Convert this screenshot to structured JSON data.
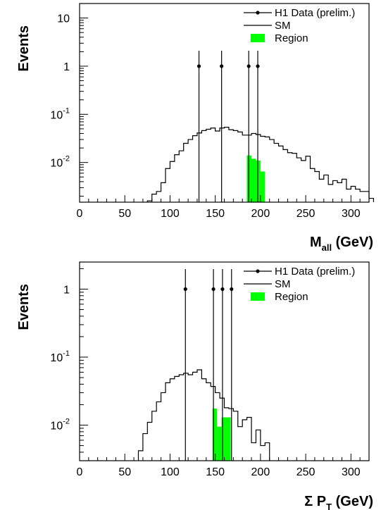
{
  "chart_data": [
    {
      "type": "histogram",
      "log_y": true,
      "xlim": [
        0,
        320
      ],
      "ylim": [
        0.0015,
        20
      ],
      "x_ticks": [
        0,
        50,
        100,
        150,
        200,
        250,
        300
      ],
      "x_tick_labels": [
        "0",
        "50",
        "100",
        "150",
        "200",
        "250",
        "300"
      ],
      "y_tick_values": [
        0.01,
        0.1,
        1,
        10
      ],
      "y_tick_labels": [
        {
          "base": "10",
          "exp": "-2"
        },
        {
          "base": "10",
          "exp": "-1"
        },
        {
          "base": "1",
          "exp": ""
        },
        {
          "base": "10",
          "exp": ""
        }
      ],
      "xlabel": {
        "main": "M",
        "sub": "all",
        "rest": " (GeV)"
      },
      "ylabel": "Events",
      "legend": [
        "H1 Data (prelim.)",
        "SM",
        "Region"
      ],
      "legend_position": "top-right",
      "region_color": "#00ff00",
      "bin_width": 5,
      "sm_hist": {
        "x_start": 75,
        "values": [
          0.0016,
          0.0022,
          0.0025,
          0.0038,
          0.0075,
          0.0105,
          0.0145,
          0.0175,
          0.025,
          0.03,
          0.036,
          0.041,
          0.046,
          0.049,
          0.052,
          0.045,
          0.052,
          0.054,
          0.048,
          0.046,
          0.043,
          0.037,
          0.037,
          0.04,
          0.038,
          0.035,
          0.034,
          0.03,
          0.025,
          0.022,
          0.0185,
          0.016,
          0.0155,
          0.0125,
          0.011,
          0.0135,
          0.0075,
          0.0065,
          0.0045,
          0.0055,
          0.0035,
          0.0042,
          0.0038,
          0.0045,
          0.0028,
          0.0032,
          0.0028,
          0.0025,
          0.0025,
          0.0018
        ]
      },
      "region": {
        "x_start": 185,
        "values": [
          0.014,
          0.012,
          0.011,
          0.0065
        ]
      },
      "data_points": [
        {
          "x": 132,
          "y": 1
        },
        {
          "x": 157,
          "y": 1
        },
        {
          "x": 187,
          "y": 1
        },
        {
          "x": 197,
          "y": 1
        }
      ]
    },
    {
      "type": "histogram",
      "log_y": true,
      "xlim": [
        0,
        320
      ],
      "ylim": [
        0.003,
        2.5
      ],
      "x_ticks": [
        0,
        50,
        100,
        150,
        200,
        250,
        300
      ],
      "x_tick_labels": [
        "0",
        "50",
        "100",
        "150",
        "200",
        "250",
        "300"
      ],
      "y_tick_values": [
        0.01,
        0.1,
        1
      ],
      "y_tick_labels": [
        {
          "base": "10",
          "exp": "-2"
        },
        {
          "base": "10",
          "exp": "-1"
        },
        {
          "base": "1",
          "exp": ""
        }
      ],
      "xlabel": {
        "main": "Σ P",
        "sub": "T",
        "rest": " (GeV)"
      },
      "ylabel": "Events",
      "legend": [
        "H1 Data (prelim.)",
        "SM",
        "Region"
      ],
      "legend_position": "top-right",
      "region_color": "#00ff00",
      "bin_width": 5,
      "sm_hist": {
        "x_start": 65,
        "values": [
          0.0042,
          0.0075,
          0.011,
          0.016,
          0.022,
          0.03,
          0.042,
          0.048,
          0.052,
          0.055,
          0.058,
          0.055,
          0.06,
          0.065,
          0.048,
          0.042,
          0.037,
          0.03,
          0.025,
          0.018,
          0.0175,
          0.016,
          0.0095,
          0.012,
          0.013,
          0.0055,
          0.0085,
          0.005,
          0.0055
        ]
      },
      "region": {
        "x_start": 147,
        "values": [
          0.0175,
          0.0095,
          0.013,
          0.013
        ]
      },
      "data_points": [
        {
          "x": 117,
          "y": 1
        },
        {
          "x": 148,
          "y": 1
        },
        {
          "x": 158,
          "y": 1
        },
        {
          "x": 168,
          "y": 1
        }
      ]
    }
  ]
}
